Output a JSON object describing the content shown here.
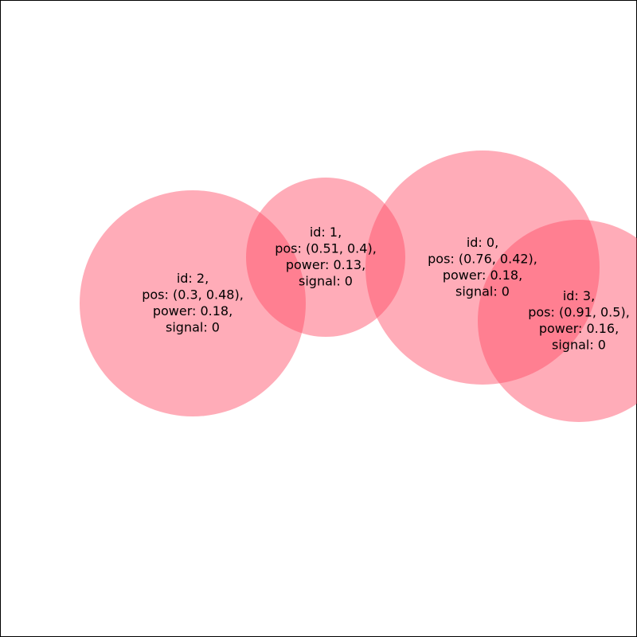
{
  "nodes": [
    {
      "lines": [
        "id: 0,",
        "pos: (0.76, 0.42),",
        "power: 0.18,",
        "signal: 0"
      ]
    },
    {
      "lines": [
        "id: 1,",
        "pos: (0.51, 0.4),",
        "power: 0.13,",
        "signal: 0"
      ]
    },
    {
      "lines": [
        "id: 2,",
        "pos: (0.3, 0.48),",
        "power: 0.18,",
        "signal: 0"
      ]
    },
    {
      "lines": [
        "id: 3,",
        "pos: (0.91, 0.5),",
        "power: 0.16,",
        "signal: 0"
      ]
    }
  ]
}
